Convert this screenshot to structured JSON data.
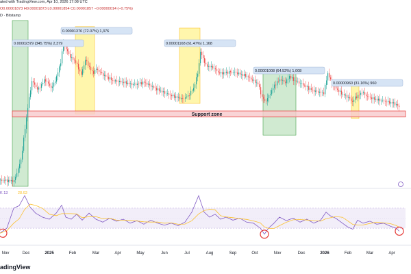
{
  "header": {
    "line1": "ated with TradingView.com, Apr 10, 2026 17:08 UTC",
    "line2": "D · Bitstamp",
    "ohlc": "O0.00001873 H0.00001873 L0.00001854 C0.00001857 −0.00000014 (−0.75%)"
  },
  "rsi_label": "K 13",
  "rsi_value": "28.63",
  "support_label": "Support zone",
  "watermark": "adingView",
  "x_ticks": [
    "Nov",
    "Dec",
    "2025",
    "Feb",
    "Mar",
    "Apr",
    "May",
    "Jun",
    "Jul",
    "Aug",
    "Sep",
    "Oct",
    "Nov",
    "Dec",
    "2026",
    "Feb",
    "Mar",
    "Apr"
  ],
  "annotations": [
    {
      "text": "0.00002379 (345.75%) 2,379",
      "color": "#4caf50"
    },
    {
      "text": "0.00001376 (72.07%) 1,376",
      "color": "#fbc02d"
    },
    {
      "text": "0.00001168 (61.47%) 1,168",
      "color": "#fbc02d"
    },
    {
      "text": "0.00001008 (64.52%) 1,008",
      "color": "#4caf50"
    },
    {
      "text": "0.00000960 (31.16%) 960",
      "color": "#fbc02d"
    }
  ],
  "colors": {
    "up": "#26a69a",
    "down": "#ef5350",
    "rsi": "#7e57c2",
    "rsi_ma": "#fbc02d",
    "support_fill": "#f8c9cc",
    "support_border": "#e53935",
    "green_box": "#c8e6c9",
    "yellow_box": "#fff59d"
  },
  "chart_data": {
    "type": "candlestick",
    "series": [
      {
        "name": "price",
        "points": [
          [
            0,
            8
          ],
          [
            20,
            7
          ],
          [
            30,
            35
          ],
          [
            40,
            105
          ],
          [
            46,
            140
          ],
          [
            55,
            128
          ],
          [
            65,
            142
          ],
          [
            75,
            130
          ],
          [
            82,
            145
          ],
          [
            88,
            165
          ],
          [
            92,
            190
          ],
          [
            96,
            182
          ],
          [
            102,
            172
          ],
          [
            110,
            165
          ],
          [
            118,
            148
          ],
          [
            124,
            168
          ],
          [
            130,
            158
          ],
          [
            135,
            150
          ],
          [
            140,
            156
          ],
          [
            150,
            148
          ],
          [
            165,
            140
          ],
          [
            180,
            138
          ],
          [
            195,
            135
          ],
          [
            210,
            138
          ],
          [
            230,
            128
          ],
          [
            245,
            122
          ],
          [
            258,
            118
          ],
          [
            266,
            116
          ],
          [
            274,
            120
          ],
          [
            282,
            130
          ],
          [
            288,
            150
          ],
          [
            292,
            178
          ],
          [
            296,
            170
          ],
          [
            300,
            160
          ],
          [
            310,
            158
          ],
          [
            320,
            150
          ],
          [
            340,
            152
          ],
          [
            360,
            146
          ],
          [
            376,
            136
          ],
          [
            382,
            118
          ],
          [
            387,
            112
          ],
          [
            392,
            120
          ],
          [
            400,
            134
          ],
          [
            408,
            142
          ],
          [
            416,
            138
          ],
          [
            422,
            146
          ],
          [
            430,
            140
          ],
          [
            440,
            136
          ],
          [
            450,
            130
          ],
          [
            460,
            126
          ],
          [
            472,
            124
          ],
          [
            478,
            150
          ],
          [
            484,
            136
          ],
          [
            492,
            128
          ],
          [
            500,
            122
          ],
          [
            508,
            118
          ],
          [
            514,
            112
          ],
          [
            518,
            118
          ],
          [
            522,
            120
          ],
          [
            528,
            125
          ],
          [
            536,
            119
          ],
          [
            545,
            116
          ],
          [
            555,
            114
          ],
          [
            565,
            112
          ],
          [
            575,
            110
          ],
          [
            583,
            105
          ]
        ]
      },
      {
        "name": "rsi",
        "points": [
          [
            0,
            20
          ],
          [
            10,
            30
          ],
          [
            20,
            70
          ],
          [
            28,
            75
          ],
          [
            36,
            95
          ],
          [
            44,
            72
          ],
          [
            52,
            60
          ],
          [
            62,
            52
          ],
          [
            72,
            48
          ],
          [
            82,
            60
          ],
          [
            90,
            76
          ],
          [
            96,
            52
          ],
          [
            104,
            48
          ],
          [
            112,
            58
          ],
          [
            120,
            46
          ],
          [
            130,
            60
          ],
          [
            140,
            48
          ],
          [
            150,
            42
          ],
          [
            160,
            50
          ],
          [
            170,
            44
          ],
          [
            180,
            48
          ],
          [
            190,
            40
          ],
          [
            200,
            45
          ],
          [
            210,
            38
          ],
          [
            220,
            46
          ],
          [
            230,
            40
          ],
          [
            240,
            36
          ],
          [
            250,
            40
          ],
          [
            260,
            35
          ],
          [
            270,
            42
          ],
          [
            280,
            62
          ],
          [
            290,
            95
          ],
          [
            298,
            62
          ],
          [
            306,
            52
          ],
          [
            314,
            58
          ],
          [
            322,
            48
          ],
          [
            330,
            52
          ],
          [
            340,
            46
          ],
          [
            350,
            50
          ],
          [
            360,
            42
          ],
          [
            370,
            40
          ],
          [
            380,
            30
          ],
          [
            386,
            18
          ],
          [
            392,
            30
          ],
          [
            400,
            40
          ],
          [
            408,
            52
          ],
          [
            418,
            45
          ],
          [
            428,
            50
          ],
          [
            438,
            42
          ],
          [
            448,
            48
          ],
          [
            458,
            40
          ],
          [
            468,
            46
          ],
          [
            476,
            62
          ],
          [
            482,
            55
          ],
          [
            490,
            50
          ],
          [
            500,
            40
          ],
          [
            508,
            32
          ],
          [
            515,
            28
          ],
          [
            522,
            46
          ],
          [
            530,
            40
          ],
          [
            540,
            44
          ],
          [
            550,
            38
          ],
          [
            560,
            40
          ],
          [
            570,
            34
          ],
          [
            578,
            30
          ],
          [
            583,
            24
          ]
        ]
      }
    ],
    "ylim": [
      0,
      220
    ],
    "support_zone": [
      92,
      100
    ],
    "boxes": [
      {
        "from": 18,
        "to": 41,
        "low": 0,
        "high": 220,
        "color": "green"
      },
      {
        "from": 110,
        "to": 138,
        "low": 96,
        "high": 212,
        "color": "yellow"
      },
      {
        "from": 262,
        "to": 292,
        "low": 110,
        "high": 210,
        "color": "yellow"
      },
      {
        "from": 384,
        "to": 432,
        "low": 68,
        "high": 158,
        "color": "green"
      },
      {
        "from": 513,
        "to": 524,
        "low": 90,
        "high": 140,
        "color": "yellow"
      }
    ]
  }
}
